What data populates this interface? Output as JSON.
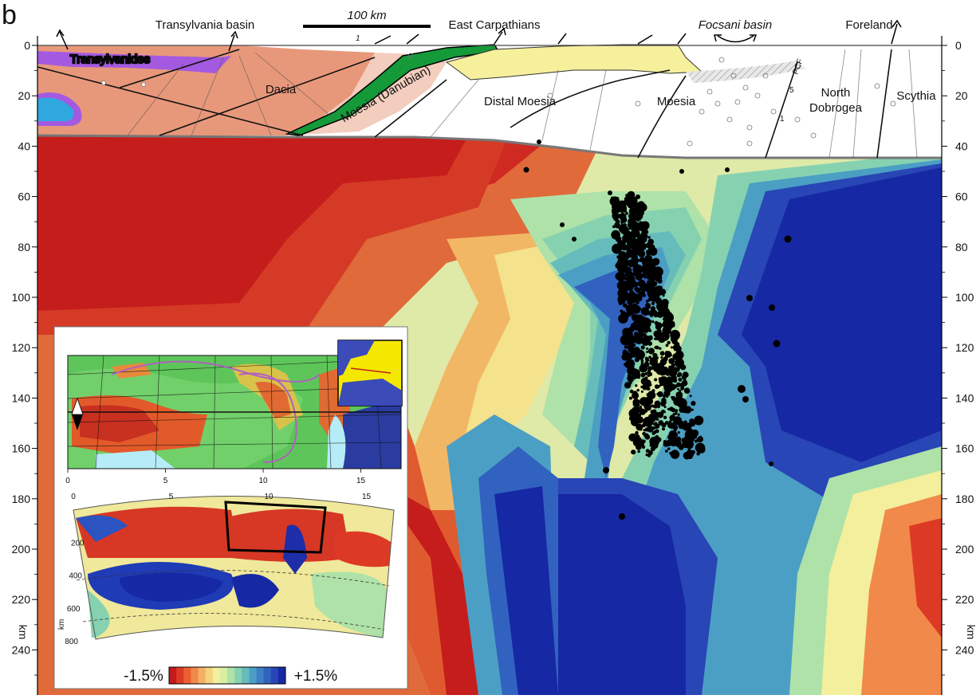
{
  "figure": {
    "panel_letter": "b",
    "scale_bar_label": "100 km",
    "depth_unit": "km",
    "labels": {
      "transylvania_basin": "Transylvania basin",
      "east_carpathians": "East Carpathians",
      "focsani_basin": "Focsani basin",
      "foreland": "Foreland",
      "transylvanides": "Transylvanides",
      "dacia": "Dacia",
      "moesia_danubian": "Moesia (Danubian)",
      "distal_moesia": "Distal Moesia",
      "moesia": "Moesia",
      "north_dobrogea_1": "North",
      "north_dobrogea_2": "Dobrogea",
      "scythia": "Scythia",
      "pcf": "PCF",
      "fault_num_1": "1",
      "fault_num_5": "5",
      "fault_num_1b": "1"
    },
    "depth_ticks": [
      0,
      20,
      40,
      60,
      80,
      100,
      120,
      140,
      160,
      180,
      200,
      220,
      240
    ],
    "inset": {
      "map_x_ticks": [
        0,
        5,
        10,
        15
      ],
      "section_top_ticks": [
        0,
        5,
        10,
        15
      ],
      "section_depth_ticks": [
        200,
        400,
        600,
        800
      ],
      "section_unit": "km",
      "colorbar_min_label": "-1.5%",
      "colorbar_max_label": "+1.5%",
      "colorbar_colors": [
        "#c41a1a",
        "#dd3a25",
        "#ea6030",
        "#f1894a",
        "#f5b066",
        "#f5d37f",
        "#f4ef9c",
        "#d8efa2",
        "#aee2a8",
        "#86d2b0",
        "#66bcbb",
        "#4c9fc4",
        "#3d80c4",
        "#3262bf",
        "#2846b5",
        "#1628a4"
      ]
    }
  }
}
